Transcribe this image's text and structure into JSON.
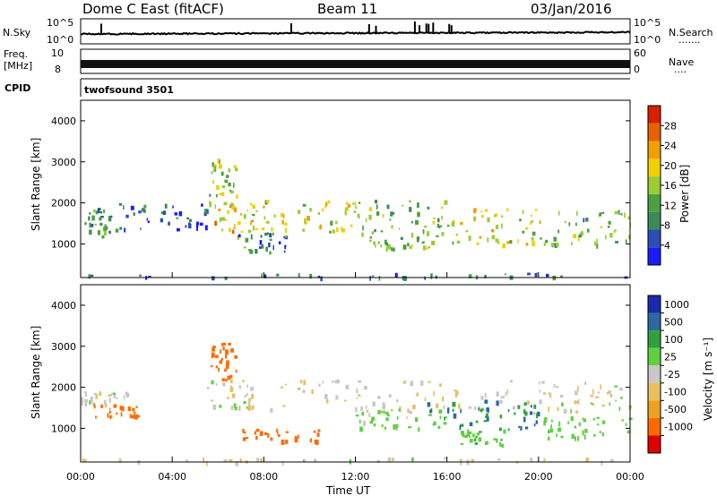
{
  "header": {
    "station": "Dome C East (fitACF)",
    "beam": "Beam 11",
    "date": "03/Jan/2016"
  },
  "nsky_panel": {
    "label": "N.Sky",
    "right_label": "N.Search",
    "right_dots": "·······",
    "tick_top_left": "10^5",
    "tick_bottom_left": "10^0",
    "tick_top_right": "10^5",
    "tick_bottom_right": "10^0"
  },
  "freq_panel": {
    "label_line1": "Freq.",
    "label_line2": "[MHz]",
    "right_label": "Nave",
    "right_dots": "····",
    "tick_top_left": "10",
    "tick_bottom_left": "8",
    "tick_top_right": "60",
    "tick_bottom_right": "0"
  },
  "cpid_panel": {
    "label": "CPID",
    "program": "twofsound 3501"
  },
  "colors": {
    "power": [
      "#1a1aff",
      "#2a4fb0",
      "#3a8a5a",
      "#4aa040",
      "#9acd32",
      "#f0d000",
      "#f0a000",
      "#e86000",
      "#d82000"
    ],
    "velocity": [
      "#e00000",
      "#ff6a00",
      "#f0a020",
      "#e8c060",
      "#c8c8c8",
      "#60d040",
      "#30a040",
      "#2a6aa0",
      "#1a2ab0"
    ],
    "ground_scatter": "#c0c0b8"
  },
  "chart_data": [
    {
      "type": "heatmap",
      "name": "power-panel",
      "ylabel": "Slant Range [km]",
      "xlim": [
        0,
        24
      ],
      "ylim": [
        180,
        4500
      ],
      "yticks": [
        1000,
        2000,
        3000,
        4000
      ],
      "ytick_labels": [
        "1000",
        "2000",
        "3000",
        "4000"
      ],
      "colorbar": {
        "label": "Power [dB]",
        "range": [
          0,
          32
        ],
        "ticks": [
          4,
          8,
          12,
          16,
          20,
          24,
          28
        ],
        "tick_labels": [
          "4",
          "8",
          "12",
          "16",
          "20",
          "24",
          "28"
        ]
      },
      "scatter_bands": [
        {
          "t": [
            0.0,
            1.5
          ],
          "r": [
            1200,
            1900
          ],
          "v": 10
        },
        {
          "t": [
            1.5,
            5.5
          ],
          "r": [
            1300,
            2000
          ],
          "v": 6
        },
        {
          "t": [
            5.5,
            8.0
          ],
          "r": [
            1300,
            2100
          ],
          "v": 20
        },
        {
          "t": [
            8.0,
            12.0
          ],
          "r": [
            1300,
            2100
          ],
          "v": 17
        },
        {
          "t": [
            12.0,
            16.0
          ],
          "r": [
            1200,
            2100
          ],
          "v": 14
        },
        {
          "t": [
            16.0,
            20.0
          ],
          "r": [
            1000,
            1900
          ],
          "v": 18
        },
        {
          "t": [
            20.0,
            24.0
          ],
          "r": [
            1000,
            1900
          ],
          "v": 12
        },
        {
          "t": [
            5.6,
            6.8
          ],
          "r": [
            2200,
            3100
          ],
          "v": 16
        },
        {
          "t": [
            6.8,
            9.0
          ],
          "r": [
            800,
            1300
          ],
          "v": 9
        },
        {
          "t": [
            12.5,
            15.5
          ],
          "r": [
            900,
            1200
          ],
          "v": 13
        },
        {
          "t": [
            0.0,
            24.0
          ],
          "r": [
            200,
            300
          ],
          "v": 8
        }
      ]
    },
    {
      "type": "heatmap",
      "name": "velocity-panel",
      "ylabel": "Slant Range [km]",
      "xlabel": "Time UT",
      "xlim": [
        0,
        24
      ],
      "ylim": [
        180,
        4500
      ],
      "yticks": [
        1000,
        2000,
        3000,
        4000
      ],
      "ytick_labels": [
        "1000",
        "2000",
        "3000",
        "4000"
      ],
      "xticks": [
        0,
        4,
        8,
        12,
        16,
        20,
        24
      ],
      "xtick_labels": [
        "00:00",
        "04:00",
        "08:00",
        "12:00",
        "16:00",
        "20:00",
        "00:00"
      ],
      "colorbar": {
        "label": "Velocity  [m s⁻¹]",
        "ticks": [
          "1000",
          "500",
          "100",
          "25",
          "-25",
          "-100",
          "-500",
          "-1000"
        ]
      },
      "scatter_bands": [
        {
          "t": [
            0.0,
            2.0
          ],
          "r": [
            1600,
            1950
          ],
          "v": 0
        },
        {
          "t": [
            0.5,
            2.5
          ],
          "r": [
            1300,
            1600
          ],
          "v": -150
        },
        {
          "t": [
            5.5,
            7.5
          ],
          "r": [
            1500,
            2200
          ],
          "v": 0
        },
        {
          "t": [
            5.6,
            6.8
          ],
          "r": [
            2200,
            3100
          ],
          "v": -200
        },
        {
          "t": [
            7.0,
            10.5
          ],
          "r": [
            700,
            1000
          ],
          "v": -300
        },
        {
          "t": [
            8.0,
            24.0
          ],
          "r": [
            1400,
            2200
          ],
          "v": 0
        },
        {
          "t": [
            12.0,
            16.0
          ],
          "r": [
            1000,
            1500
          ],
          "v": 40
        },
        {
          "t": [
            15.0,
            20.0
          ],
          "r": [
            1000,
            1700
          ],
          "v": 300
        },
        {
          "t": [
            16.5,
            18.5
          ],
          "r": [
            600,
            1000
          ],
          "v": 80
        },
        {
          "t": [
            20.0,
            24.0
          ],
          "r": [
            800,
            1300
          ],
          "v": 60
        },
        {
          "t": [
            0.0,
            24.0
          ],
          "r": [
            200,
            300
          ],
          "v": 0
        }
      ]
    }
  ]
}
